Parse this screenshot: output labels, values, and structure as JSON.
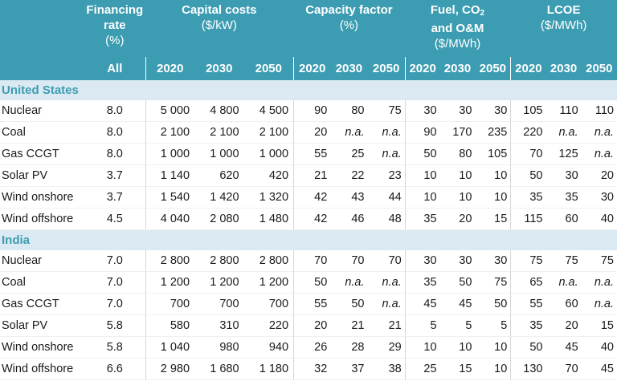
{
  "headers": {
    "financing": {
      "line1": "Financing",
      "line2": "rate",
      "unit": "(%)"
    },
    "capital": {
      "title": "Capital costs",
      "unit": "($/kW)"
    },
    "capacity": {
      "title": "Capacity factor",
      "unit": "(%)"
    },
    "fuel": {
      "line1": "Fuel, CO",
      "sub": "2",
      "line2": "and O&M",
      "unit": "($/MWh)"
    },
    "lcoe": {
      "title": "LCOE",
      "unit": "($/MWh)"
    }
  },
  "subheaders": {
    "fin": "All",
    "years": [
      "2020",
      "2030",
      "2050",
      "2020",
      "2030",
      "2050",
      "2020",
      "2030",
      "2050",
      "2020",
      "2030",
      "2050"
    ]
  },
  "regions": [
    {
      "name": "United States",
      "rows": [
        {
          "tech": "Nuclear",
          "fin": "8.0",
          "cap": [
            "5 000",
            "4 800",
            "4 500"
          ],
          "cf": [
            "90",
            "80",
            "75"
          ],
          "fuel": [
            "30",
            "30",
            "30"
          ],
          "lcoe": [
            "105",
            "110",
            "110"
          ]
        },
        {
          "tech": "Coal",
          "fin": "8.0",
          "cap": [
            "2 100",
            "2 100",
            "2 100"
          ],
          "cf": [
            "20",
            "n.a.",
            "n.a."
          ],
          "fuel": [
            "90",
            "170",
            "235"
          ],
          "lcoe": [
            "220",
            "n.a.",
            "n.a."
          ]
        },
        {
          "tech": "Gas CCGT",
          "fin": "8.0",
          "cap": [
            "1 000",
            "1 000",
            "1 000"
          ],
          "cf": [
            "55",
            "25",
            "n.a."
          ],
          "fuel": [
            "50",
            "80",
            "105"
          ],
          "lcoe": [
            "70",
            "125",
            "n.a."
          ]
        },
        {
          "tech": "Solar PV",
          "fin": "3.7",
          "cap": [
            "1 140",
            "620",
            "420"
          ],
          "cf": [
            "21",
            "22",
            "23"
          ],
          "fuel": [
            "10",
            "10",
            "10"
          ],
          "lcoe": [
            "50",
            "30",
            "20"
          ]
        },
        {
          "tech": "Wind onshore",
          "fin": "3.7",
          "cap": [
            "1 540",
            "1 420",
            "1 320"
          ],
          "cf": [
            "42",
            "43",
            "44"
          ],
          "fuel": [
            "10",
            "10",
            "10"
          ],
          "lcoe": [
            "35",
            "35",
            "30"
          ]
        },
        {
          "tech": "Wind offshore",
          "fin": "4.5",
          "cap": [
            "4 040",
            "2 080",
            "1 480"
          ],
          "cf": [
            "42",
            "46",
            "48"
          ],
          "fuel": [
            "35",
            "20",
            "15"
          ],
          "lcoe": [
            "115",
            "60",
            "40"
          ]
        }
      ]
    },
    {
      "name": "India",
      "rows": [
        {
          "tech": "Nuclear",
          "fin": "7.0",
          "cap": [
            "2 800",
            "2 800",
            "2 800"
          ],
          "cf": [
            "70",
            "70",
            "70"
          ],
          "fuel": [
            "30",
            "30",
            "30"
          ],
          "lcoe": [
            "75",
            "75",
            "75"
          ]
        },
        {
          "tech": "Coal",
          "fin": "7.0",
          "cap": [
            "1 200",
            "1 200",
            "1 200"
          ],
          "cf": [
            "50",
            "n.a.",
            "n.a."
          ],
          "fuel": [
            "35",
            "50",
            "75"
          ],
          "lcoe": [
            "65",
            "n.a.",
            "n.a."
          ]
        },
        {
          "tech": "Gas CCGT",
          "fin": "7.0",
          "cap": [
            "700",
            "700",
            "700"
          ],
          "cf": [
            "55",
            "50",
            "n.a."
          ],
          "fuel": [
            "45",
            "45",
            "50"
          ],
          "lcoe": [
            "55",
            "60",
            "n.a."
          ]
        },
        {
          "tech": "Solar PV",
          "fin": "5.8",
          "cap": [
            "580",
            "310",
            "220"
          ],
          "cf": [
            "20",
            "21",
            "21"
          ],
          "fuel": [
            "5",
            "5",
            "5"
          ],
          "lcoe": [
            "35",
            "20",
            "15"
          ]
        },
        {
          "tech": "Wind onshore",
          "fin": "5.8",
          "cap": [
            "1 040",
            "980",
            "940"
          ],
          "cf": [
            "26",
            "28",
            "29"
          ],
          "fuel": [
            "10",
            "10",
            "10"
          ],
          "lcoe": [
            "50",
            "45",
            "40"
          ]
        },
        {
          "tech": "Wind offshore",
          "fin": "6.6",
          "cap": [
            "2 980",
            "1 680",
            "1 180"
          ],
          "cf": [
            "32",
            "37",
            "38"
          ],
          "fuel": [
            "25",
            "15",
            "10"
          ],
          "lcoe": [
            "130",
            "70",
            "45"
          ]
        }
      ]
    }
  ]
}
